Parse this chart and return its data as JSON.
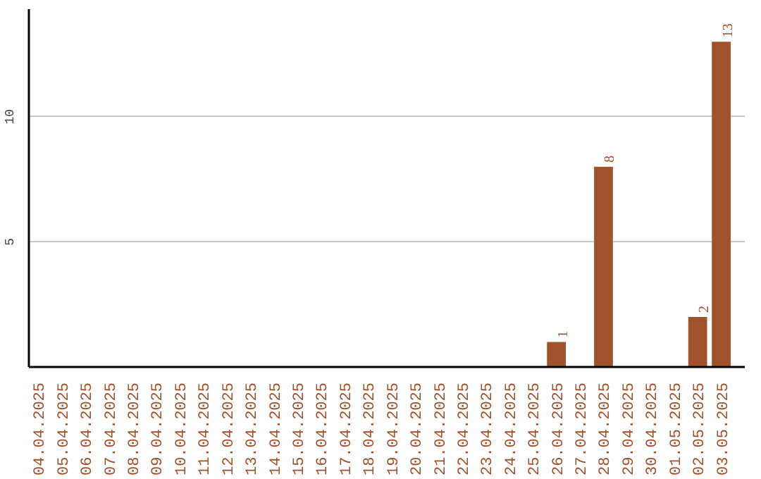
{
  "chart_data": {
    "type": "bar",
    "categories": [
      "04.04.2025",
      "05.04.2025",
      "06.04.2025",
      "07.04.2025",
      "08.04.2025",
      "09.04.2025",
      "10.04.2025",
      "11.04.2025",
      "12.04.2025",
      "13.04.2025",
      "14.04.2025",
      "15.04.2025",
      "16.04.2025",
      "17.04.2025",
      "18.04.2025",
      "19.04.2025",
      "20.04.2025",
      "21.04.2025",
      "22.04.2025",
      "23.04.2025",
      "24.04.2025",
      "25.04.2025",
      "26.04.2025",
      "27.04.2025",
      "28.04.2025",
      "29.04.2025",
      "30.04.2025",
      "01.05.2025",
      "02.05.2025",
      "03.05.2025"
    ],
    "values": [
      0,
      0,
      0,
      0,
      0,
      0,
      0,
      0,
      0,
      0,
      0,
      0,
      0,
      0,
      0,
      0,
      0,
      0,
      0,
      0,
      0,
      0,
      1,
      0,
      8,
      0,
      0,
      0,
      2,
      13
    ],
    "value_labels": [
      null,
      null,
      null,
      null,
      null,
      null,
      null,
      null,
      null,
      null,
      null,
      null,
      null,
      null,
      null,
      null,
      null,
      null,
      null,
      null,
      null,
      null,
      "1",
      null,
      "8",
      null,
      null,
      null,
      "2",
      "13"
    ],
    "color": "#a0522d",
    "ylim": [
      0,
      14.3
    ],
    "yticks": [
      5,
      10
    ],
    "grid": "y"
  }
}
